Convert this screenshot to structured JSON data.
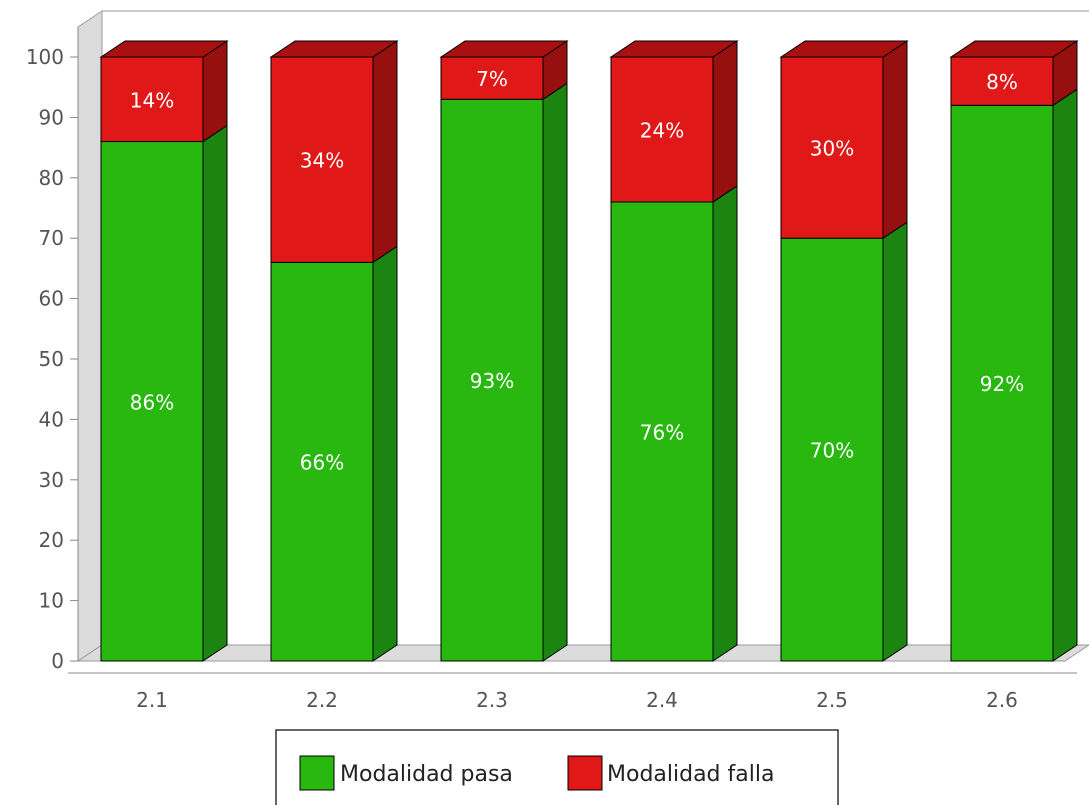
{
  "chart_data": {
    "type": "bar",
    "stacked": true,
    "three_d": true,
    "categories": [
      "2.1",
      "2.2",
      "2.3",
      "2.4",
      "2.5",
      "2.6"
    ],
    "series": [
      {
        "name": "Modalidad pasa",
        "values": [
          86,
          66,
          93,
          76,
          70,
          92
        ],
        "labels": [
          "86%",
          "66%",
          "93%",
          "76%",
          "70%",
          "92%"
        ]
      },
      {
        "name": "Modalidad falla",
        "values": [
          14,
          34,
          7,
          24,
          30,
          8
        ],
        "labels": [
          "14%",
          "34%",
          "7%",
          "24%",
          "30%",
          "8%"
        ]
      }
    ],
    "ylim": [
      0,
      100
    ],
    "yticks": [
      0,
      10,
      20,
      30,
      40,
      50,
      60,
      70,
      80,
      90,
      100
    ],
    "ytick_labels": [
      "0",
      "10",
      "20",
      "30",
      "40",
      "50",
      "60",
      "70",
      "80",
      "90",
      "100"
    ],
    "grid": false,
    "legend_position": "bottom"
  },
  "colors": {
    "pasa_front": "#29b80f",
    "pasa_side": "#1c8410",
    "pasa_top": "#22a00d",
    "falla_front": "#e01818",
    "falla_side": "#961010",
    "falla_top": "#a91010",
    "wall": "#dcdcdc",
    "floor": "#dcdcdc"
  }
}
